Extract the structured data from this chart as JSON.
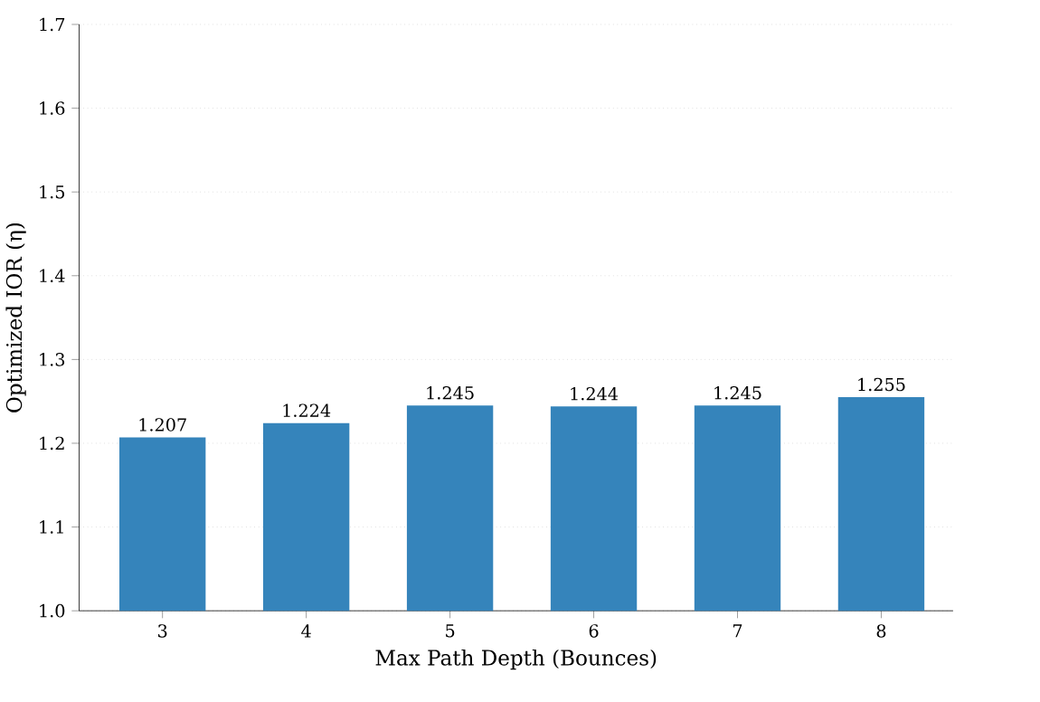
{
  "chart_data": {
    "type": "bar",
    "xlabel": "Max Path Depth (Bounces)",
    "ylabel": "Optimized IOR (η)",
    "categories": [
      "3",
      "4",
      "5",
      "6",
      "7",
      "8"
    ],
    "values": [
      1.207,
      1.224,
      1.245,
      1.244,
      1.245,
      1.255
    ],
    "color": "#3584bb",
    "ylim": [
      1.0,
      1.7
    ],
    "yticks": [
      {
        "value": 1.0,
        "label": "1.0"
      },
      1.1,
      1.2,
      1.3,
      1.4,
      1.5,
      1.6,
      1.7
    ],
    "grid": "y",
    "data_labels": true
  }
}
